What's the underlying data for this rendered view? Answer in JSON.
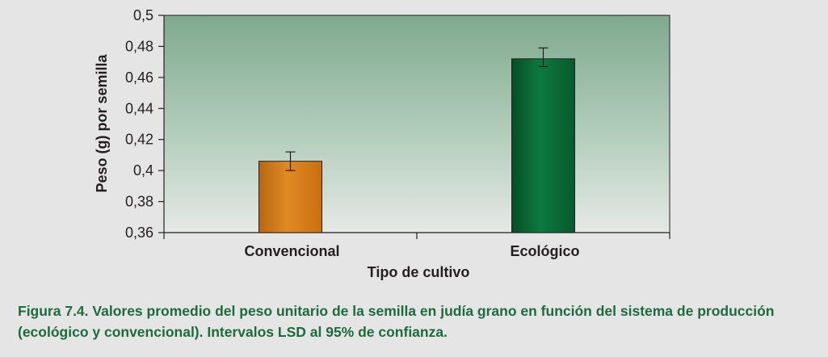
{
  "chart_data": {
    "type": "bar",
    "categories": [
      "Convencional",
      "Ecológico"
    ],
    "values": [
      0.406,
      0.472
    ],
    "error_low": [
      0.4,
      0.467
    ],
    "error_high": [
      0.412,
      0.479
    ],
    "bar_colors": [
      "#d97f1c",
      "#0b6a36"
    ],
    "xlabel": "Tipo de cultivo",
    "ylabel": "Peso (g) por semilla",
    "ylim": [
      0.36,
      0.5
    ],
    "yticks": [
      "0,36",
      "0,38",
      "0,4",
      "0,42",
      "0,44",
      "0,46",
      "0,48",
      "0,5"
    ],
    "grid": false
  },
  "caption": "Figura 7.4. Valores promedio del peso unitario de la semilla en judía grano en función del sistema de producción (ecológico y convencional). Intervalos LSD al 95% de confianza.",
  "colors": {
    "background": "#e5e5e5",
    "plot_top": "#7eaa8e",
    "plot_bottom": "#e6e9e6",
    "caption": "#1b6b3d"
  }
}
